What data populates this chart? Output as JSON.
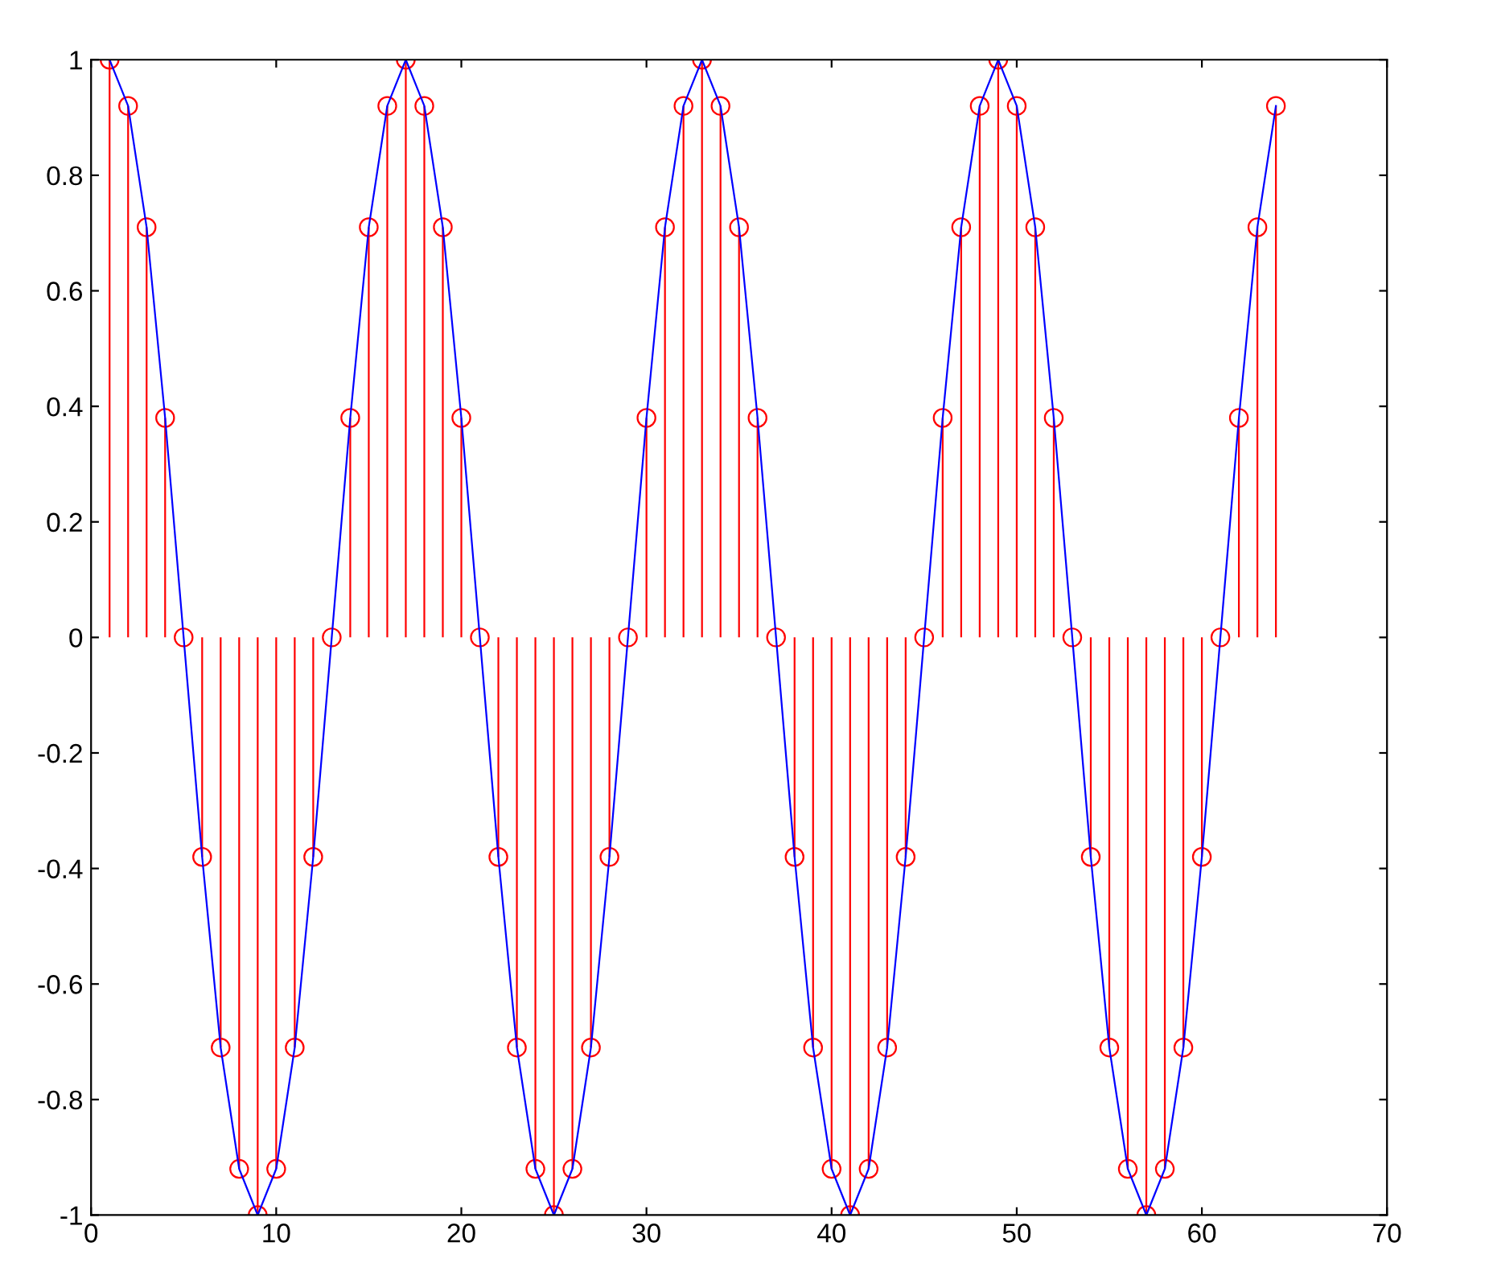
{
  "chart_data": {
    "type": "lollipop",
    "x": [
      1,
      2,
      3,
      4,
      5,
      6,
      7,
      8,
      9,
      10,
      11,
      12,
      13,
      14,
      15,
      16,
      17,
      18,
      19,
      20,
      21,
      22,
      23,
      24,
      25,
      26,
      27,
      28,
      29,
      30,
      31,
      32,
      33,
      34,
      35,
      36,
      37,
      38,
      39,
      40,
      41,
      42,
      43,
      44,
      45,
      46,
      47,
      48,
      49,
      50,
      51,
      52,
      53,
      54,
      55,
      56,
      57,
      58,
      59,
      60,
      61,
      62,
      63,
      64
    ],
    "series": [
      {
        "color": "#ff0000",
        "marker": "circle",
        "values": [
          1,
          0.92,
          0.71,
          0.38,
          0,
          -0.38,
          -0.71,
          -0.92,
          -1,
          -0.92,
          -0.71,
          -0.38,
          0,
          0.38,
          0.71,
          0.92,
          1,
          0.92,
          0.71,
          0.38,
          0,
          -0.38,
          -0.71,
          -0.92,
          -1,
          -0.92,
          -0.71,
          -0.38,
          0,
          0.38,
          0.71,
          0.92,
          1,
          0.92,
          0.71,
          0.38,
          0,
          -0.38,
          -0.71,
          -0.92,
          -1,
          -0.92,
          -0.71,
          -0.38,
          0,
          0.38,
          0.71,
          0.92,
          1,
          0.92,
          0.71,
          0.38,
          0,
          -0.38,
          -0.71,
          -0.92,
          -1,
          -0.92,
          -0.71,
          -0.38,
          0,
          0.38,
          0.71,
          0.92
        ]
      },
      {
        "type": "line",
        "color": "#0000ff",
        "marker": "none",
        "line_style": "solid",
        "values": [
          1,
          0.92,
          0.71,
          0.38,
          0,
          -0.38,
          -0.71,
          -0.92,
          -1,
          -0.92,
          -0.71,
          -0.38,
          0,
          0.38,
          0.71,
          0.92,
          1,
          0.92,
          0.71,
          0.38,
          0,
          -0.38,
          -0.71,
          -0.92,
          -1,
          -0.92,
          -0.71,
          -0.38,
          0,
          0.38,
          0.71,
          0.92,
          1,
          0.92,
          0.71,
          0.38,
          0,
          -0.38,
          -0.71,
          -0.92,
          -1,
          -0.92,
          -0.71,
          -0.38,
          0,
          0.38,
          0.71,
          0.92,
          1,
          0.92,
          0.71,
          0.38,
          0,
          -0.38,
          -0.71,
          -0.92,
          -1,
          -0.92,
          -0.71,
          -0.38,
          0,
          0.38,
          0.71,
          0.92
        ]
      }
    ],
    "xlim": [
      0,
      70
    ],
    "xticks": [
      0,
      10,
      20,
      30,
      40,
      50,
      60,
      70
    ],
    "ylim": [
      -1,
      1
    ],
    "yticks": [
      -1,
      -0.8,
      -0.6,
      -0.4,
      -0.2,
      0,
      0.2,
      0.4,
      0.6,
      0.8,
      1
    ],
    "grid": false
  }
}
